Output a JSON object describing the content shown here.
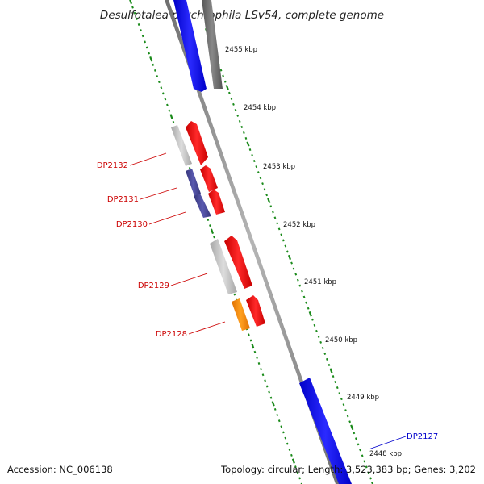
{
  "title": "Desulfotalea psychrophila LSv54, complete genome",
  "footer": {
    "accession": "Accession: NC_006138",
    "topology": "Topology: circular; Length: 3,523,383 bp; Genes: 3,202"
  },
  "ticks": [
    {
      "label": "2455 kbp"
    },
    {
      "label": "2454 kbp"
    },
    {
      "label": "2453 kbp"
    },
    {
      "label": "2452 kbp"
    },
    {
      "label": "2451 kbp"
    },
    {
      "label": "2450 kbp"
    },
    {
      "label": "2449 kbp"
    },
    {
      "label": "2448 kbp"
    }
  ],
  "gene_labels": [
    {
      "label": "DP2132",
      "color": "#cc0000"
    },
    {
      "label": "DP2131",
      "color": "#cc0000"
    },
    {
      "label": "DP2130",
      "color": "#cc0000"
    },
    {
      "label": "DP2129",
      "color": "#cc0000"
    },
    {
      "label": "DP2128",
      "color": "#cc0000"
    },
    {
      "label": "DP2127",
      "color": "#0000cc"
    }
  ],
  "colors": {
    "backbone": "#8a8a8a",
    "tick_marks": "#1a8a1a",
    "forward_gene": "#0000ee",
    "reverse_gene": "#ee0000",
    "cog_gray": "#bbbbbb",
    "cog_dark": "#666666",
    "cog_purple": "#4a4a99",
    "cog_orange": "#ff8800"
  }
}
